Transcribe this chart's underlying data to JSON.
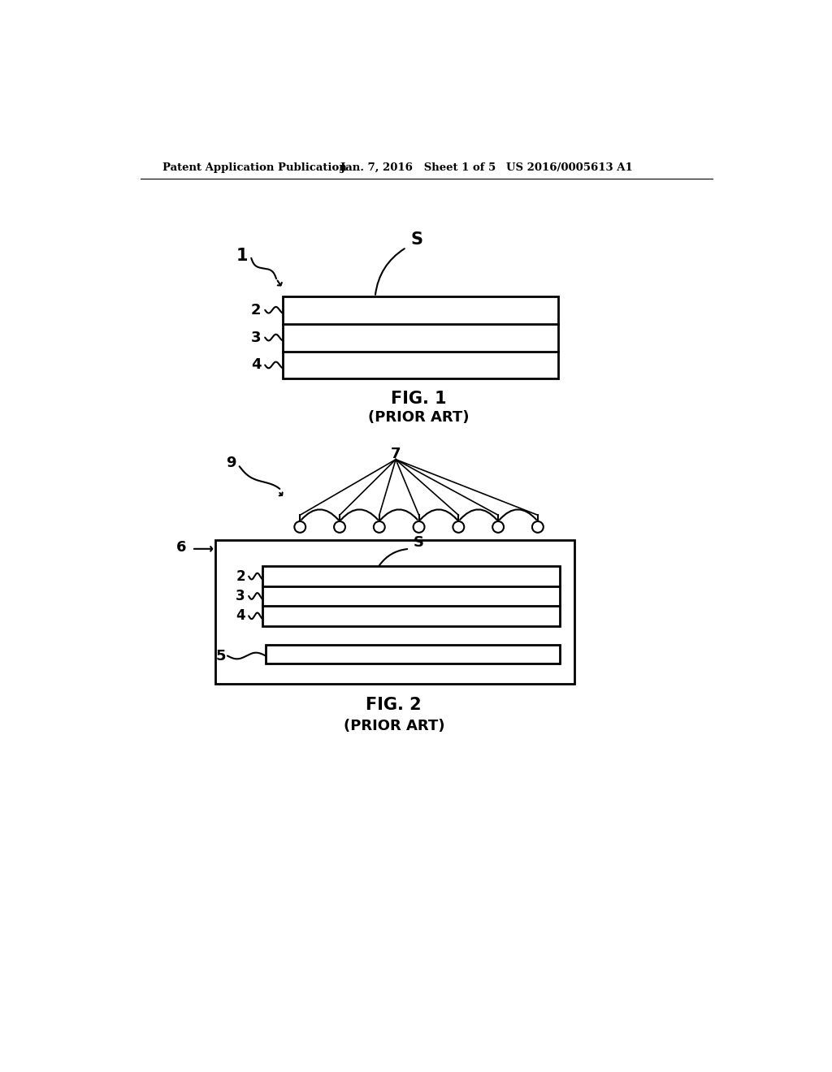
{
  "bg_color": "#ffffff",
  "header_left": "Patent Application Publication",
  "header_mid": "Jan. 7, 2016   Sheet 1 of 5",
  "header_right": "US 2016/0005613 A1",
  "fig1_title": "FIG. 1",
  "fig1_subtitle": "(PRIOR ART)",
  "fig2_title": "FIG. 2",
  "fig2_subtitle": "(PRIOR ART)",
  "line_color": "#000000",
  "text_color": "#000000"
}
